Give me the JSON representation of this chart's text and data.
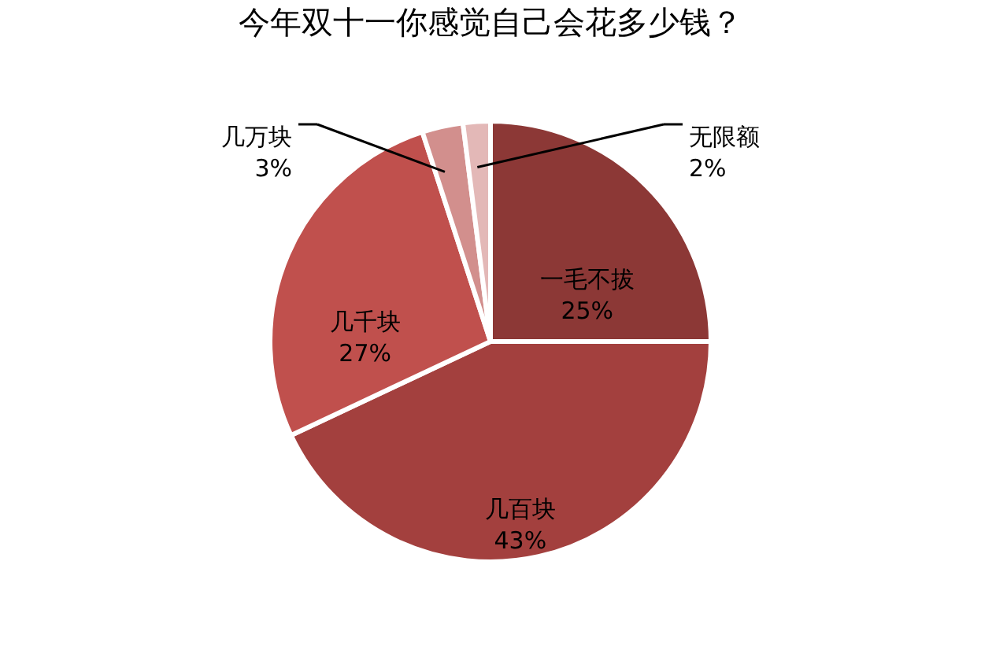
{
  "chart_data": {
    "type": "pie",
    "title": "今年双十一你感觉自己会花多少钱？",
    "categories": [
      "一毛不拔",
      "几百块",
      "几千块",
      "几万块",
      "无限额"
    ],
    "values": [
      25,
      43,
      27,
      3,
      2
    ],
    "value_labels": [
      "25%",
      "43%",
      "27%",
      "3%",
      "2%"
    ],
    "colors": [
      "#8c3836",
      "#a3403e",
      "#c0504d",
      "#d28f8d",
      "#e3b8b7"
    ]
  }
}
